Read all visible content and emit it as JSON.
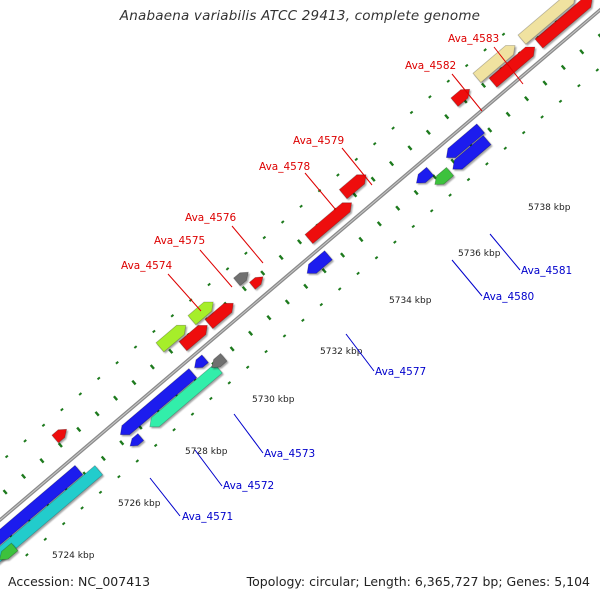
{
  "header": {
    "title": "Anabaena variabilis ATCC 29413, complete genome"
  },
  "footer": {
    "accession": "Accession: NC_007413",
    "summary": "Topology: circular; Length: 6,365,727 bp; Genes: 5,104"
  },
  "colors": {
    "forward_label": "#dd0000",
    "reverse_label": "#0000cc",
    "backbone": "#8a8a8a",
    "tick": "#1d7a1d",
    "red": "#ee1111",
    "blue": "#1a1aee",
    "gray": "#707070",
    "yellowgreen": "#a6ee2a",
    "cyan": "#22cccc",
    "mint": "#33eeaa",
    "lime": "#3ec23e",
    "khaki": "#f0e2a0"
  },
  "scale": {
    "unit": "kbp",
    "labels": [
      {
        "pos": 5724,
        "text": "5724 kbp"
      },
      {
        "pos": 5726,
        "text": "5726 kbp"
      },
      {
        "pos": 5728,
        "text": "5728 kbp"
      },
      {
        "pos": 5730,
        "text": "5730 kbp"
      },
      {
        "pos": 5732,
        "text": "5732 kbp"
      },
      {
        "pos": 5734,
        "text": "5734 kbp"
      },
      {
        "pos": 5736,
        "text": "5736 kbp"
      },
      {
        "pos": 5738,
        "text": "5738 kbp"
      }
    ]
  },
  "genes": [
    {
      "label": "Ava_4571",
      "strand": "reverse",
      "color": "blue"
    },
    {
      "label": "Ava_4572",
      "strand": "reverse",
      "color": "mint"
    },
    {
      "label": "Ava_4573",
      "strand": "reverse",
      "color": "gray"
    },
    {
      "label": "Ava_4574",
      "strand": "forward",
      "color": "yellowgreen"
    },
    {
      "label": "Ava_4575",
      "strand": "forward",
      "color": "yellowgreen"
    },
    {
      "label": "Ava_4576",
      "strand": "forward",
      "color": "gray"
    },
    {
      "label": "Ava_4577",
      "strand": "reverse",
      "color": "blue"
    },
    {
      "label": "Ava_4578",
      "strand": "forward",
      "color": "red"
    },
    {
      "label": "Ava_4579",
      "strand": "forward",
      "color": "red"
    },
    {
      "label": "Ava_4580",
      "strand": "reverse",
      "color": "lime"
    },
    {
      "label": "Ava_4581",
      "strand": "reverse",
      "color": "blue"
    },
    {
      "label": "Ava_4582",
      "strand": "forward",
      "color": "red"
    },
    {
      "label": "Ava_4583",
      "strand": "forward",
      "color": "khaki"
    }
  ]
}
